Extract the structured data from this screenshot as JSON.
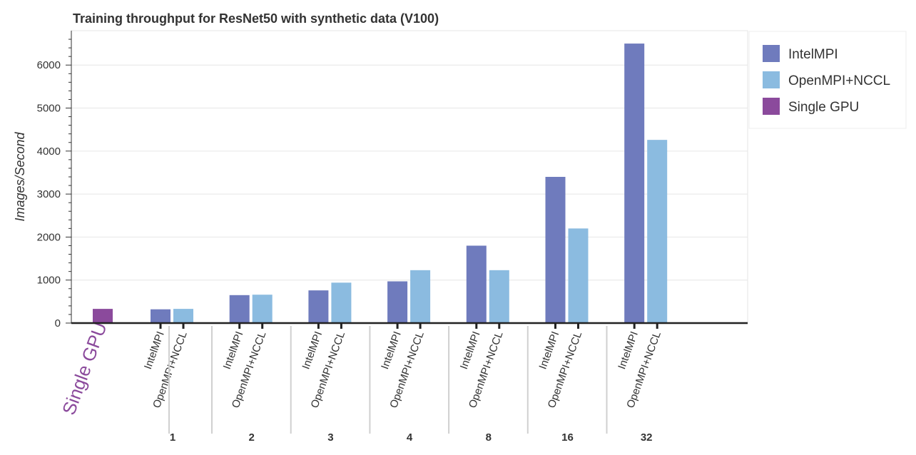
{
  "chart_data": {
    "type": "bar",
    "title": "Training throughput for ResNet50 with synthetic data (V100)",
    "ylabel": "Images/Second",
    "xlabel": "",
    "ylim": [
      0,
      6800
    ],
    "yticks": [
      0,
      1000,
      2000,
      3000,
      4000,
      5000,
      6000
    ],
    "grid": "horizontal",
    "legend_position": "right",
    "single_gpu": {
      "label": "Single GPU",
      "value": 330,
      "color": "#8b4a9c"
    },
    "groups": [
      "1",
      "2",
      "3",
      "4",
      "8",
      "16",
      "32"
    ],
    "series": [
      {
        "name": "IntelMPI",
        "color": "#6f7bbd",
        "values": [
          320,
          650,
          760,
          970,
          1800,
          3400,
          6500
        ]
      },
      {
        "name": "OpenMPI+NCCL",
        "color": "#8bbbe0",
        "values": [
          330,
          660,
          940,
          1230,
          1230,
          2200,
          4260
        ]
      }
    ],
    "legend": [
      "IntelMPI",
      "OpenMPI+NCCL",
      "Single GPU"
    ]
  }
}
